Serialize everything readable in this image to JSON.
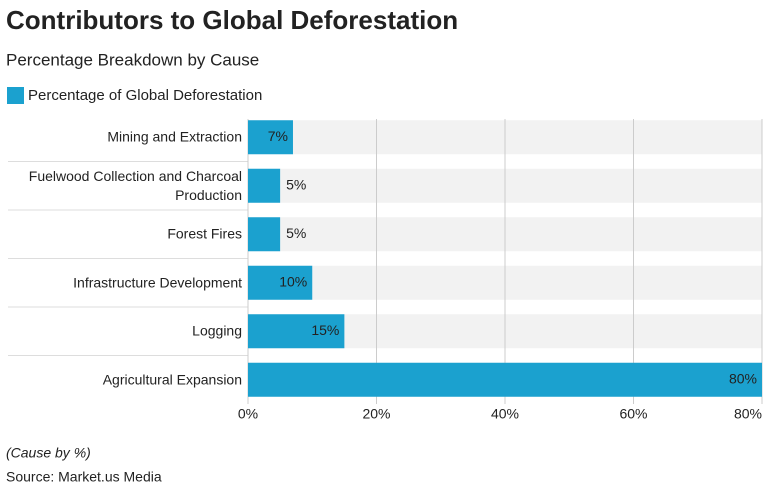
{
  "chart_data": {
    "type": "hbar",
    "title": "Contributors to Global Deforestation",
    "subtitle": "Percentage Breakdown by Cause",
    "categories": [
      "Mining and Extraction",
      "Fuelwood Collection and Charcoal Production",
      "Forest Fires",
      "Infrastructure Development",
      "Logging",
      "Agricultural Expansion"
    ],
    "series": [
      {
        "name": "Percentage of Global Deforestation",
        "color": "#1ba1cf",
        "values": [
          7,
          5,
          5,
          10,
          15,
          80
        ],
        "value_labels": [
          "7%",
          "5%",
          "5%",
          "10%",
          "15%",
          "80%"
        ]
      }
    ],
    "xlim": [
      0,
      80
    ],
    "xticks": [
      {
        "value": 0,
        "label": "0%"
      },
      {
        "value": 20,
        "label": "20%"
      },
      {
        "value": 40,
        "label": "40%"
      },
      {
        "value": 60,
        "label": "60%"
      },
      {
        "value": 80,
        "label": "80%"
      }
    ],
    "grid": true,
    "note": "(Cause by %)",
    "source": "Source: Market.us Media"
  }
}
